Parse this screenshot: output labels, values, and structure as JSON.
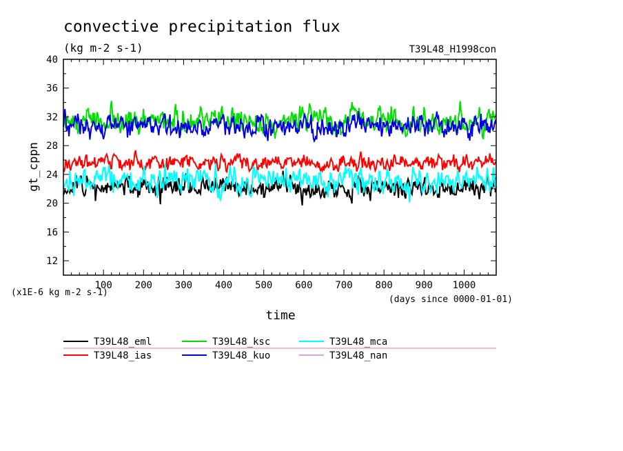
{
  "chart_data": {
    "type": "line",
    "title": "convective precipitation flux",
    "units_line": "(kg m-2 s-1)",
    "run_label": "T39L48_H1998con",
    "ylabel": "gt_cppn",
    "xlabel": "time",
    "y_scale_note": "(x1E-6 kg m-2 s-1)",
    "x_units_note": "(days since 0000-01-01)",
    "xlim": [
      0,
      1080
    ],
    "ylim": [
      10,
      40
    ],
    "x_ticks": [
      100,
      200,
      300,
      400,
      500,
      600,
      700,
      800,
      900,
      1000
    ],
    "y_ticks": [
      12,
      16,
      20,
      24,
      28,
      32,
      36,
      40
    ],
    "grid": false,
    "legend_placement": "bottom",
    "series": [
      {
        "name": "T39L48_eml",
        "color": "#000000",
        "mean": 22.2,
        "amp": 1.3,
        "min": 19.6,
        "max": 24.8,
        "seed": 11
      },
      {
        "name": "T39L48_ias",
        "color": "#ff0000",
        "mean": 25.6,
        "amp": 0.9,
        "min": 23.8,
        "max": 28.2,
        "seed": 23
      },
      {
        "name": "T39L48_ksc",
        "color": "#00e000",
        "mean": 31.5,
        "amp": 1.5,
        "min": 27.3,
        "max": 35.8,
        "seed": 37
      },
      {
        "name": "T39L48_kuo",
        "color": "#0000e0",
        "mean": 30.8,
        "amp": 1.3,
        "min": 27.1,
        "max": 35.9,
        "seed": 41
      },
      {
        "name": "T39L48_mca",
        "color": "#00ffff",
        "mean": 23.2,
        "amp": 1.6,
        "min": 19.3,
        "max": 27.9,
        "seed": 53
      },
      {
        "name": "T39L48_nan",
        "color": "#e8a0d8"
      }
    ]
  }
}
